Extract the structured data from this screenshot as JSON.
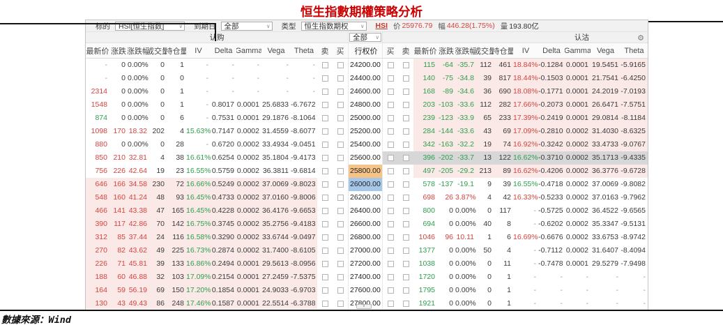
{
  "title": "恒生指數期權策略分析",
  "source": {
    "prefix": "數據來源：",
    "value": "Wind"
  },
  "toolbar": {
    "underlying_label": "标的",
    "underlying_value": "HSI[恒生指数]",
    "expiry_label": "到期日",
    "expiry_value": "全部",
    "type_label": "类型",
    "type_value": "恒生指数期权",
    "quote": {
      "symbol": "HSI",
      "price_label": "价",
      "price": "25976.79",
      "change_label": "幅",
      "change": "446.28(1.75%)",
      "volume_label": "量",
      "volume": "193.80亿"
    }
  },
  "sections": {
    "calls": "认购",
    "puts": "认沽",
    "strike_filter": "全部"
  },
  "columns": {
    "side": [
      "最新价",
      "涨跌",
      "涨跌幅",
      "成交量",
      "持仓量",
      "IV",
      "Delta",
      "Gamma",
      "Vega",
      "Theta"
    ],
    "sell": "卖",
    "buy": "买",
    "strike": "行权价"
  },
  "colors": {
    "up_red": "#d5443f",
    "down_green": "#2e9e4d",
    "neutral": "#3a3a3a",
    "muted": "#9a9a9a",
    "otm_row_pink": "#fae9e7",
    "selected_row_gray": "#d7d7d7",
    "strike_highlight_orange": "#f6c388",
    "strike_highlight_blue": "#a6c8e8",
    "title_red": "#cc0000"
  },
  "rows": [
    {
      "c": [
        "-",
        "0",
        "0.00%",
        "0",
        "1",
        "-",
        "-",
        "-",
        "-",
        "-"
      ],
      "cc": [
        "m",
        "n",
        "n",
        "n",
        "n",
        "m",
        "m",
        "m",
        "m",
        "m"
      ],
      "cb": null,
      "k": "24200.00",
      "kb": null,
      "sel": false,
      "pb": "pink",
      "p": [
        "115",
        "-64",
        "-35.7",
        "112",
        "461",
        "18.84%",
        "-0.1284",
        "0.0001",
        "19.5451",
        "-5.9165"
      ],
      "pc": [
        "d",
        "d",
        "d",
        "n",
        "n",
        "u",
        "n",
        "n",
        "n",
        "n"
      ]
    },
    {
      "c": [
        "-",
        "0",
        "0.00%",
        "0",
        "0",
        "-",
        "-",
        "-",
        "-",
        "-"
      ],
      "cc": [
        "m",
        "n",
        "n",
        "n",
        "n",
        "m",
        "m",
        "m",
        "m",
        "m"
      ],
      "cb": null,
      "k": "24400.00",
      "kb": null,
      "sel": false,
      "pb": "pink",
      "p": [
        "140",
        "-75",
        "-34.8",
        "39",
        "817",
        "18.44%",
        "-0.1503",
        "0.0001",
        "21.7541",
        "-6.4250"
      ],
      "pc": [
        "d",
        "d",
        "d",
        "n",
        "n",
        "u",
        "n",
        "n",
        "n",
        "n"
      ]
    },
    {
      "c": [
        "2314",
        "0",
        "0.00%",
        "0",
        "1",
        "-",
        "-",
        "-",
        "-",
        "-"
      ],
      "cc": [
        "u",
        "n",
        "n",
        "n",
        "n",
        "m",
        "m",
        "m",
        "m",
        "m"
      ],
      "cb": null,
      "k": "24600.00",
      "kb": null,
      "sel": false,
      "pb": "pink",
      "p": [
        "168",
        "-89",
        "-34.6",
        "36",
        "690",
        "18.08%",
        "-0.1771",
        "0.0001",
        "24.2019",
        "-7.0193"
      ],
      "pc": [
        "d",
        "d",
        "d",
        "n",
        "n",
        "u",
        "n",
        "n",
        "n",
        "n"
      ]
    },
    {
      "c": [
        "1548",
        "0",
        "0.00%",
        "0",
        "1",
        "-",
        "0.8017",
        "0.0001",
        "25.6833",
        "-6.7672"
      ],
      "cc": [
        "u",
        "n",
        "n",
        "n",
        "n",
        "m",
        "n",
        "n",
        "n",
        "n"
      ],
      "cb": null,
      "k": "24800.00",
      "kb": null,
      "sel": false,
      "pb": "pink",
      "p": [
        "203",
        "-103",
        "-33.6",
        "112",
        "282",
        "17.66%",
        "-0.2073",
        "0.0001",
        "26.6471",
        "-7.5751"
      ],
      "pc": [
        "d",
        "d",
        "d",
        "n",
        "n",
        "u",
        "n",
        "n",
        "n",
        "n"
      ]
    },
    {
      "c": [
        "874",
        "0",
        "0.00%",
        "0",
        "6",
        "-",
        "0.7531",
        "0.0001",
        "29.1876",
        "-8.1064"
      ],
      "cc": [
        "d",
        "n",
        "n",
        "n",
        "n",
        "m",
        "n",
        "n",
        "n",
        "n"
      ],
      "cb": null,
      "k": "25000.00",
      "kb": null,
      "sel": false,
      "pb": "pink",
      "p": [
        "239",
        "-123",
        "-33.9",
        "65",
        "233",
        "17.39%",
        "-0.2419",
        "0.0001",
        "29.0814",
        "-8.1184"
      ],
      "pc": [
        "d",
        "d",
        "d",
        "n",
        "n",
        "u",
        "n",
        "n",
        "n",
        "n"
      ]
    },
    {
      "c": [
        "1098",
        "170",
        "18.32",
        "202",
        "4",
        "15.63%",
        "0.7147",
        "0.0002",
        "31.4559",
        "-8.6077"
      ],
      "cc": [
        "u",
        "u",
        "u",
        "n",
        "n",
        "d",
        "n",
        "n",
        "n",
        "n"
      ],
      "cb": null,
      "k": "25200.00",
      "kb": null,
      "sel": false,
      "pb": "pink",
      "p": [
        "284",
        "-144",
        "-33.6",
        "43",
        "69",
        "17.09%",
        "-0.2810",
        "0.0002",
        "31.4030",
        "-8.6325"
      ],
      "pc": [
        "d",
        "d",
        "d",
        "n",
        "n",
        "u",
        "n",
        "n",
        "n",
        "n"
      ]
    },
    {
      "c": [
        "880",
        "0",
        "0.00%",
        "0",
        "28",
        "-",
        "0.6720",
        "0.0002",
        "33.4934",
        "-9.0451"
      ],
      "cc": [
        "u",
        "n",
        "n",
        "n",
        "n",
        "m",
        "n",
        "n",
        "n",
        "n"
      ],
      "cb": null,
      "k": "25400.00",
      "kb": null,
      "sel": false,
      "pb": "pink",
      "p": [
        "342",
        "-163",
        "-32.2",
        "19",
        "74",
        "16.92%",
        "-0.3242",
        "0.0002",
        "33.4733",
        "-9.0767"
      ],
      "pc": [
        "d",
        "d",
        "d",
        "n",
        "n",
        "u",
        "n",
        "n",
        "n",
        "n"
      ]
    },
    {
      "c": [
        "850",
        "210",
        "32.81",
        "4",
        "38",
        "16.61%",
        "0.6254",
        "0.0002",
        "35.1804",
        "-9.4173"
      ],
      "cc": [
        "u",
        "u",
        "u",
        "n",
        "n",
        "d",
        "n",
        "n",
        "n",
        "n"
      ],
      "cb": null,
      "k": "25600.00",
      "kb": null,
      "sel": true,
      "pb": "pink",
      "p": [
        "396",
        "-202",
        "-33.7",
        "13",
        "122",
        "16.62%",
        "-0.3710",
        "0.0002",
        "35.1713",
        "-9.4335"
      ],
      "pc": [
        "d",
        "d",
        "d",
        "n",
        "n",
        "d",
        "n",
        "n",
        "n",
        "n"
      ]
    },
    {
      "c": [
        "756",
        "226",
        "42.64",
        "19",
        "23",
        "16.55%",
        "0.5759",
        "0.0002",
        "36.3811",
        "-9.6814"
      ],
      "cc": [
        "u",
        "u",
        "u",
        "n",
        "n",
        "d",
        "n",
        "n",
        "n",
        "n"
      ],
      "cb": null,
      "k": "25800.00",
      "kb": "orange",
      "sel": false,
      "pb": "pink",
      "p": [
        "497",
        "-205",
        "-29.2",
        "213",
        "89",
        "16.62%",
        "-0.4206",
        "0.0002",
        "36.3776",
        "-9.6728"
      ],
      "pc": [
        "d",
        "d",
        "d",
        "n",
        "n",
        "u",
        "n",
        "n",
        "n",
        "n"
      ]
    },
    {
      "c": [
        "646",
        "166",
        "34.58",
        "230",
        "72",
        "16.66%",
        "0.5249",
        "0.0002",
        "37.0069",
        "-9.8023"
      ],
      "cc": [
        "u",
        "u",
        "u",
        "n",
        "n",
        "d",
        "n",
        "n",
        "n",
        "n"
      ],
      "cb": "pink",
      "k": "26000.00",
      "kb": "blue",
      "sel": false,
      "pb": null,
      "p": [
        "578",
        "-137",
        "-19.1",
        "9",
        "39",
        "16.55%",
        "-0.4718",
        "0.0002",
        "37.0069",
        "-9.8082"
      ],
      "pc": [
        "d",
        "d",
        "d",
        "n",
        "n",
        "d",
        "n",
        "n",
        "n",
        "n"
      ]
    },
    {
      "c": [
        "548",
        "160",
        "41.24",
        "48",
        "93",
        "16.45%",
        "0.4733",
        "0.0002",
        "37.0160",
        "-9.8006"
      ],
      "cc": [
        "u",
        "u",
        "u",
        "n",
        "n",
        "d",
        "n",
        "n",
        "n",
        "n"
      ],
      "cb": "pink",
      "k": "26200.00",
      "kb": null,
      "sel": false,
      "pb": null,
      "p": [
        "698",
        "26",
        "3.87%",
        "4",
        "42",
        "16.33%",
        "-0.5233",
        "0.0002",
        "37.0163",
        "-9.7962"
      ],
      "pc": [
        "u",
        "u",
        "u",
        "n",
        "n",
        "u",
        "n",
        "n",
        "n",
        "n"
      ]
    },
    {
      "c": [
        "466",
        "141",
        "43.38",
        "47",
        "165",
        "16.45%",
        "0.4228",
        "0.0002",
        "36.4176",
        "-9.6653"
      ],
      "cc": [
        "u",
        "u",
        "u",
        "n",
        "n",
        "d",
        "n",
        "n",
        "n",
        "n"
      ],
      "cb": "pink",
      "k": "26400.00",
      "kb": null,
      "sel": false,
      "pb": null,
      "p": [
        "800",
        "0",
        "0.00%",
        "0",
        "117",
        "-",
        "-0.5725",
        "0.0002",
        "36.4522",
        "-9.6565"
      ],
      "pc": [
        "d",
        "n",
        "n",
        "n",
        "n",
        "m",
        "n",
        "n",
        "n",
        "n"
      ]
    },
    {
      "c": [
        "390",
        "117",
        "42.86",
        "70",
        "142",
        "16.75%",
        "0.3745",
        "0.0002",
        "35.2756",
        "-9.4183"
      ],
      "cc": [
        "u",
        "u",
        "u",
        "n",
        "n",
        "d",
        "n",
        "n",
        "n",
        "n"
      ],
      "cb": "pink",
      "k": "26600.00",
      "kb": null,
      "sel": false,
      "pb": null,
      "p": [
        "694",
        "0",
        "0.00%",
        "40",
        "8",
        "-",
        "-0.6202",
        "0.0002",
        "35.3347",
        "-9.5131"
      ],
      "pc": [
        "d",
        "n",
        "n",
        "n",
        "n",
        "m",
        "n",
        "n",
        "n",
        "n"
      ]
    },
    {
      "c": [
        "312",
        "85",
        "37.44",
        "24",
        "116",
        "16.58%",
        "0.3290",
        "0.0002",
        "33.6744",
        "-9.0497"
      ],
      "cc": [
        "u",
        "u",
        "u",
        "n",
        "n",
        "d",
        "n",
        "n",
        "n",
        "n"
      ],
      "cb": "pink",
      "k": "26800.00",
      "kb": null,
      "sel": false,
      "pb": null,
      "p": [
        "1046",
        "96",
        "10.11",
        "1",
        "6",
        "16.69%",
        "-0.6676",
        "0.0002",
        "33.6753",
        "-8.9742"
      ],
      "pc": [
        "u",
        "u",
        "u",
        "n",
        "n",
        "u",
        "n",
        "n",
        "n",
        "n"
      ]
    },
    {
      "c": [
        "270",
        "82",
        "43.62",
        "49",
        "225",
        "16.73%",
        "0.2874",
        "0.0002",
        "31.7400",
        "-8.6105"
      ],
      "cc": [
        "u",
        "u",
        "u",
        "n",
        "n",
        "d",
        "n",
        "n",
        "n",
        "n"
      ],
      "cb": "pink",
      "k": "27000.00",
      "kb": null,
      "sel": false,
      "pb": null,
      "p": [
        "1377",
        "0",
        "0.00%",
        "50",
        "4",
        "-",
        "-0.7112",
        "0.0002",
        "31.6407",
        "-8.4094"
      ],
      "pc": [
        "d",
        "n",
        "n",
        "n",
        "n",
        "m",
        "n",
        "n",
        "n",
        "n"
      ]
    },
    {
      "c": [
        "226",
        "71",
        "45.81",
        "39",
        "133",
        "16.86%",
        "0.2494",
        "0.0001",
        "29.5613",
        "-8.0956"
      ],
      "cc": [
        "u",
        "u",
        "u",
        "n",
        "n",
        "d",
        "n",
        "n",
        "n",
        "n"
      ],
      "cb": "pink",
      "k": "27200.00",
      "kb": null,
      "sel": false,
      "pb": null,
      "p": [
        "1038",
        "0",
        "0.00%",
        "0",
        "11",
        "-",
        "-0.7478",
        "0.0001",
        "29.5279",
        "-7.9498"
      ],
      "pc": [
        "d",
        "n",
        "n",
        "n",
        "n",
        "m",
        "n",
        "n",
        "n",
        "n"
      ]
    },
    {
      "c": [
        "188",
        "60",
        "46.88",
        "32",
        "103",
        "17.09%",
        "0.2154",
        "0.0001",
        "27.2459",
        "-7.5375"
      ],
      "cc": [
        "u",
        "u",
        "u",
        "n",
        "n",
        "d",
        "n",
        "n",
        "n",
        "n"
      ],
      "cb": "pink",
      "k": "27400.00",
      "kb": null,
      "sel": false,
      "pb": null,
      "p": [
        "1720",
        "0",
        "0.00%",
        "0",
        "1",
        "-",
        "-",
        "-",
        "-",
        "-"
      ],
      "pc": [
        "d",
        "n",
        "n",
        "n",
        "n",
        "m",
        "m",
        "m",
        "m",
        "m"
      ]
    },
    {
      "c": [
        "164",
        "59",
        "56.19",
        "69",
        "150",
        "17.20%",
        "0.1854",
        "0.0001",
        "24.9033",
        "-6.9703"
      ],
      "cc": [
        "u",
        "u",
        "u",
        "n",
        "n",
        "d",
        "n",
        "n",
        "n",
        "n"
      ],
      "cb": "pink",
      "k": "27600.00",
      "kb": null,
      "sel": false,
      "pb": null,
      "p": [
        "1795",
        "0",
        "0.00%",
        "0",
        "1",
        "-",
        "-",
        "-",
        "-",
        "-"
      ],
      "pc": [
        "d",
        "n",
        "n",
        "n",
        "n",
        "m",
        "m",
        "m",
        "m",
        "m"
      ]
    },
    {
      "c": [
        "130",
        "43",
        "49.43",
        "86",
        "248",
        "17.46%",
        "0.1587",
        "0.0001",
        "22.5514",
        "-6.3788"
      ],
      "cc": [
        "u",
        "u",
        "u",
        "n",
        "n",
        "d",
        "n",
        "n",
        "n",
        "n"
      ],
      "cb": "pink",
      "k": "27800.00",
      "kb": null,
      "sel": false,
      "pb": null,
      "p": [
        "1921",
        "0",
        "0.00%",
        "0",
        "1",
        "-",
        "-",
        "-",
        "-",
        "-"
      ],
      "pc": [
        "d",
        "n",
        "n",
        "n",
        "n",
        "m",
        "m",
        "m",
        "m",
        "m"
      ]
    }
  ]
}
